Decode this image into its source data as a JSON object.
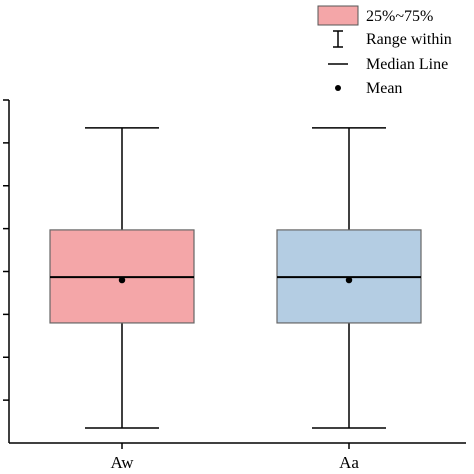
{
  "chart_data": {
    "type": "box",
    "title": "",
    "xlabel": "",
    "ylabel": "",
    "ylim": [
      0,
      8
    ],
    "y_ticks": [
      0,
      1,
      2,
      3,
      4,
      5,
      6,
      7,
      8
    ],
    "y_tick_labels_visible": false,
    "grid": false,
    "legend_position": "top-right",
    "categories": [
      "Aw",
      "Aa"
    ],
    "boxes": [
      {
        "category": "Aw",
        "whisker_low": 0.35,
        "q1": 2.8,
        "median": 3.87,
        "q3": 4.97,
        "whisker_high": 7.35,
        "mean": 3.8,
        "fill": "#f4a6a8"
      },
      {
        "category": "Aa",
        "whisker_low": 0.35,
        "q1": 2.8,
        "median": 3.87,
        "q3": 4.97,
        "whisker_high": 7.35,
        "mean": 3.8,
        "fill": "#b4cde3"
      }
    ],
    "legend": [
      {
        "key": "box",
        "label": "25%~75%",
        "color": "#f4a6a8"
      },
      {
        "key": "range",
        "label": "Range within"
      },
      {
        "key": "median",
        "label": "Median Line"
      },
      {
        "key": "mean",
        "label": "Mean"
      }
    ]
  }
}
